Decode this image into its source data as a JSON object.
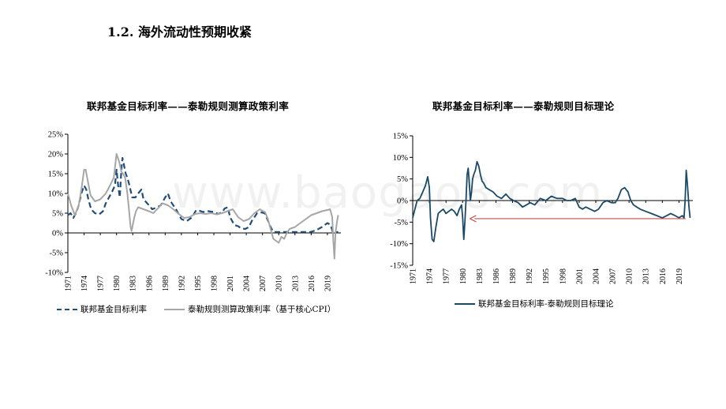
{
  "page": {
    "title": "1.2. 海外流动性预期收紧",
    "watermark": "www.baogao8.com"
  },
  "colors": {
    "fed_rate": "#1f4e79",
    "taylor_cpi": "#a6a6a6",
    "spread": "#1b4a66",
    "arrow": "#c0504d"
  },
  "chart_data": [
    {
      "type": "line",
      "title": "联邦基金目标利率——泰勒规则测算政策利率",
      "ylim": [
        -0.1,
        0.25
      ],
      "yticks": [
        -0.1,
        -0.05,
        0,
        0.05,
        0.1,
        0.15,
        0.2,
        0.25
      ],
      "ytick_labels": [
        "-10%",
        "-5%",
        "0%",
        "5%",
        "10%",
        "15%",
        "20%",
        "25%"
      ],
      "xlim": [
        1971,
        2021.5
      ],
      "xticks": [
        1971,
        1974,
        1977,
        1980,
        1983,
        1986,
        1989,
        1992,
        1995,
        1998,
        2001,
        2004,
        2007,
        2010,
        2013,
        2016,
        2019
      ],
      "xtick_labels": [
        "1971",
        "1974",
        "1977",
        "1980",
        "1983",
        "1986",
        "1989",
        "1992",
        "1995",
        "1998",
        "2001",
        "2004",
        "2007",
        "2010",
        "2013",
        "2016",
        "2019"
      ],
      "legend_position": "bottom",
      "series": [
        {
          "name": "联邦基金目标利率",
          "style": "dashed",
          "x": [
            1971,
            1971.5,
            1972,
            1972.5,
            1973,
            1973.5,
            1974,
            1974.4,
            1974.8,
            1975.3,
            1976,
            1976.8,
            1977.5,
            1978,
            1978.6,
            1979.2,
            1979.7,
            1980,
            1980.3,
            1980.6,
            1980.9,
            1981.1,
            1981.4,
            1981.7,
            1982,
            1982.4,
            1982.9,
            1983.5,
            1984,
            1984.6,
            1985,
            1986,
            1986.6,
            1987.5,
            1988.2,
            1989,
            1989.5,
            1990,
            1991,
            1991.6,
            1992,
            1993,
            1994,
            1994.6,
            1995,
            1996,
            1997,
            1998,
            1998.8,
            1999.5,
            2000,
            2000.6,
            2001,
            2001.8,
            2002.5,
            2003,
            2003.8,
            2004.5,
            2005,
            2006,
            2006.8,
            2007.4,
            2007.9,
            2008.5,
            2009,
            2010,
            2012,
            2014,
            2015.9,
            2016.5,
            2017,
            2018,
            2019,
            2019.6,
            2020,
            2020.3,
            2021
          ],
          "values": [
            0.045,
            0.05,
            0.038,
            0.05,
            0.07,
            0.1,
            0.12,
            0.11,
            0.085,
            0.06,
            0.05,
            0.047,
            0.055,
            0.075,
            0.09,
            0.105,
            0.12,
            0.16,
            0.12,
            0.09,
            0.16,
            0.19,
            0.17,
            0.15,
            0.14,
            0.12,
            0.09,
            0.09,
            0.1,
            0.11,
            0.085,
            0.07,
            0.06,
            0.065,
            0.07,
            0.09,
            0.1,
            0.08,
            0.06,
            0.045,
            0.035,
            0.03,
            0.04,
            0.055,
            0.058,
            0.053,
            0.055,
            0.053,
            0.048,
            0.052,
            0.062,
            0.065,
            0.04,
            0.02,
            0.017,
            0.012,
            0.01,
            0.015,
            0.03,
            0.05,
            0.052,
            0.05,
            0.035,
            0.015,
            0.0025,
            0.0025,
            0.0025,
            0.0025,
            0.0025,
            0.005,
            0.0075,
            0.015,
            0.025,
            0.02,
            0.0025,
            0.0025,
            0.0025
          ]
        },
        {
          "name": "泰勒规则测算政策利率（基于核心CPI）",
          "style": "solid",
          "x": [
            1971,
            1971.6,
            1972.3,
            1973,
            1973.5,
            1974,
            1974.3,
            1974.7,
            1975.2,
            1976,
            1977,
            1978,
            1978.8,
            1979.5,
            1980,
            1980.5,
            1980.9,
            1981.2,
            1981.6,
            1982,
            1982.3,
            1982.6,
            1982.8,
            1983,
            1983.3,
            1983.6,
            1984,
            1985,
            1986,
            1986.8,
            1987.5,
            1988.5,
            1989.5,
            1990.5,
            1991.5,
            1992.5,
            1993.5,
            1994.5,
            1995.5,
            1996.5,
            1997.5,
            1998.5,
            1999.5,
            2000.5,
            2001.5,
            2002.5,
            2003.5,
            2004.5,
            2005.5,
            2006.5,
            2007.5,
            2008,
            2008.5,
            2009,
            2009.5,
            2010,
            2010.5,
            2011,
            2011.5,
            2012,
            2013,
            2014,
            2015,
            2016,
            2017,
            2018,
            2019,
            2019.5,
            2019.9,
            2020.1,
            2020.3,
            2020.5,
            2020.8,
            2021
          ],
          "values": [
            0.1,
            0.07,
            0.045,
            0.07,
            0.11,
            0.16,
            0.16,
            0.13,
            0.095,
            0.08,
            0.085,
            0.1,
            0.12,
            0.14,
            0.2,
            0.18,
            0.155,
            0.15,
            0.14,
            0.1,
            0.06,
            0.015,
            0.005,
            0.02,
            0.04,
            0.055,
            0.065,
            0.06,
            0.055,
            0.05,
            0.06,
            0.075,
            0.07,
            0.06,
            0.048,
            0.038,
            0.04,
            0.048,
            0.05,
            0.048,
            0.05,
            0.047,
            0.05,
            0.055,
            0.06,
            0.04,
            0.03,
            0.035,
            0.05,
            0.06,
            0.052,
            0.035,
            0.01,
            -0.015,
            -0.02,
            -0.025,
            -0.01,
            -0.015,
            0.0,
            0.01,
            0.015,
            0.025,
            0.035,
            0.045,
            0.05,
            0.055,
            0.058,
            0.06,
            0.04,
            -0.02,
            -0.065,
            0.0,
            0.03,
            0.045
          ]
        }
      ]
    },
    {
      "type": "line",
      "title": "联邦基金目标利率——泰勒规则目标理论",
      "ylim": [
        -0.15,
        0.15
      ],
      "yticks": [
        -0.15,
        -0.1,
        -0.05,
        0,
        0.05,
        0.1,
        0.15
      ],
      "ytick_labels": [
        "-15%",
        "-10%",
        "-5%",
        "0%",
        "5%",
        "10%",
        "15%"
      ],
      "xlim": [
        1971,
        2021.5
      ],
      "xticks": [
        1971,
        1974,
        1977,
        1980,
        1983,
        1986,
        1989,
        1992,
        1995,
        1998,
        2001,
        2004,
        2007,
        2010,
        2013,
        2016,
        2019
      ],
      "xtick_labels": [
        "1971",
        "1974",
        "1977",
        "1980",
        "1983",
        "1986",
        "1989",
        "1992",
        "1995",
        "1998",
        "2001",
        "2004",
        "2007",
        "2010",
        "2013",
        "2016",
        "2019"
      ],
      "legend_position": "bottom",
      "series": [
        {
          "name": "联邦基金目标利率-泰勒规则目标理论",
          "style": "solid",
          "x": [
            1971,
            1971.4,
            1971.8,
            1972.3,
            1972.8,
            1973.3,
            1973.7,
            1974,
            1974.2,
            1974.5,
            1974.8,
            1975.2,
            1975.6,
            1976,
            1976.5,
            1977,
            1977.5,
            1978,
            1978.5,
            1979,
            1979.4,
            1979.8,
            1980,
            1980.2,
            1980.4,
            1980.6,
            1980.8,
            1981,
            1981.2,
            1981.4,
            1981.6,
            1981.8,
            1982,
            1982.3,
            1982.6,
            1982.9,
            1983.2,
            1983.5,
            1983.8,
            1984.2,
            1984.8,
            1985.5,
            1986.2,
            1987,
            1987.8,
            1988.5,
            1989.2,
            1990,
            1990.8,
            1991.5,
            1992.2,
            1993,
            1994,
            1995,
            1996,
            1997,
            1998,
            1998.8,
            1999.5,
            2000.3,
            2001,
            2001.6,
            2002.2,
            2003,
            2003.8,
            2004.5,
            2005.3,
            2006,
            2006.8,
            2007.5,
            2008,
            2008.6,
            2009.2,
            2009.8,
            2010.3,
            2010.8,
            2011.4,
            2012,
            2013,
            2014,
            2015,
            2016,
            2016.8,
            2017.5,
            2018.3,
            2019,
            2019.6,
            2019.9,
            2020.1,
            2020.3,
            2020.5,
            2020.8,
            2021
          ],
          "values": [
            -0.04,
            -0.02,
            0.0,
            0.005,
            0.02,
            0.035,
            0.055,
            0.03,
            -0.04,
            -0.09,
            -0.095,
            -0.06,
            -0.03,
            -0.025,
            -0.02,
            -0.03,
            -0.025,
            -0.02,
            -0.025,
            -0.035,
            -0.02,
            -0.01,
            -0.04,
            -0.09,
            -0.05,
            0.0,
            0.06,
            0.075,
            0.04,
            0.0,
            0.02,
            0.05,
            0.06,
            0.07,
            0.09,
            0.08,
            0.06,
            0.045,
            0.04,
            0.03,
            0.025,
            0.02,
            0.01,
            0.005,
            0.015,
            0.005,
            0.0,
            -0.005,
            -0.015,
            -0.01,
            -0.005,
            -0.01,
            0.005,
            0.0,
            0.01,
            0.005,
            0.005,
            0.0,
            0.0,
            0.005,
            -0.015,
            -0.02,
            -0.015,
            -0.02,
            -0.025,
            -0.02,
            -0.005,
            0.0,
            -0.005,
            -0.005,
            0.005,
            0.025,
            0.03,
            0.02,
            0.0,
            -0.01,
            -0.015,
            -0.02,
            -0.025,
            -0.03,
            -0.035,
            -0.04,
            -0.035,
            -0.03,
            -0.035,
            -0.04,
            -0.035,
            -0.04,
            0.0,
            0.07,
            0.04,
            -0.015,
            -0.04
          ]
        }
      ],
      "annotations": [
        {
          "type": "arrow",
          "direction": "left",
          "from_x": 2020.2,
          "to_x": 1981.3,
          "y": -0.042
        }
      ]
    }
  ]
}
